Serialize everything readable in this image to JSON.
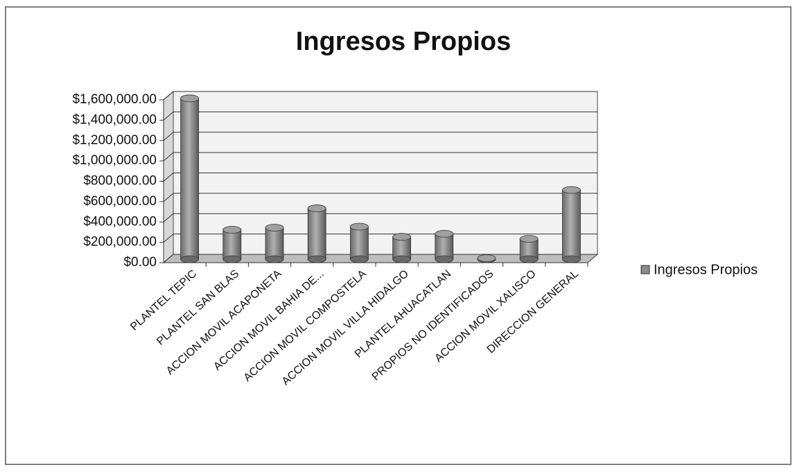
{
  "chart_data": {
    "type": "bar",
    "title": "Ingresos Propios",
    "categories": [
      "PLANTEL TEPIC",
      "PLANTEL SAN BLAS",
      "ACCION MOVIL ACAPONETA",
      "ACCION MOVIL BAHIA DE...",
      "ACCION MOVIL COMPOSTELA",
      "ACCION MOVIL VILLA HIDALGO",
      "PLANTEL AHUACATLAN",
      "PROPIOS NO IDENTIFICADOS",
      "ACCION MOVIL XALISCO",
      "DIRECCION GENERAL"
    ],
    "series": [
      {
        "name": "Ingresos Propios",
        "color": "#8a8a8a",
        "values": [
          1580000,
          290000,
          310000,
          500000,
          320000,
          220000,
          250000,
          10000,
          200000,
          680000
        ]
      }
    ],
    "ylim": [
      0,
      1600000
    ],
    "yticks": [
      {
        "value": 0,
        "label": "$0.00"
      },
      {
        "value": 200000,
        "label": "$200,000.00"
      },
      {
        "value": 400000,
        "label": "$400,000.00"
      },
      {
        "value": 600000,
        "label": "$600,000.00"
      },
      {
        "value": 800000,
        "label": "$800,000.00"
      },
      {
        "value": 1000000,
        "label": "$1,000,000.00"
      },
      {
        "value": 1200000,
        "label": "$1,200,000.00"
      },
      {
        "value": 1400000,
        "label": "$1,400,000.00"
      },
      {
        "value": 1600000,
        "label": "$1,600,000.00"
      }
    ],
    "grid": true,
    "legend": "right"
  }
}
